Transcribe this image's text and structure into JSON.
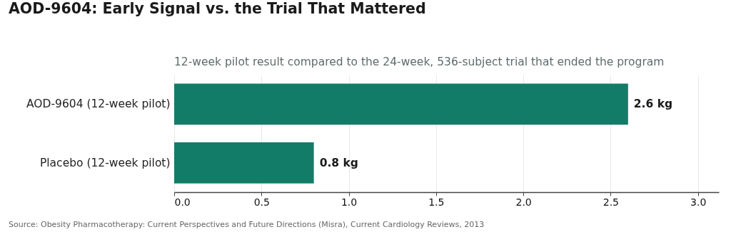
{
  "chart_data": {
    "type": "bar",
    "orientation": "horizontal",
    "title": "AOD-9604: Early Signal vs. the Trial That Mattered",
    "subtitle": "12-week pilot result compared to the 24-week, 536-subject trial that ended the program",
    "categories": [
      "AOD-9604 (12-week pilot)",
      "Placebo (12-week pilot)"
    ],
    "values": [
      2.6,
      0.8
    ],
    "color": "#127c68",
    "value_labels": [
      "2.6 kg",
      "0.8 kg"
    ],
    "xlim": [
      0,
      3.12
    ],
    "xticks": [
      {
        "value": 0,
        "label": "0.0"
      },
      {
        "value": 0.5,
        "label": "0.5"
      },
      {
        "value": 1,
        "label": "1.0"
      },
      {
        "value": 1.5,
        "label": "1.5"
      },
      {
        "value": 2,
        "label": "2.0"
      },
      {
        "value": 2.5,
        "label": "2.5"
      },
      {
        "value": 3,
        "label": "3.0"
      }
    ],
    "grid": "x",
    "annotations": [
      "Source: Obesity Pharmacotherapy: Current Perspectives and Future Directions (Misra), Current Cardiology Reviews, 2013"
    ]
  }
}
